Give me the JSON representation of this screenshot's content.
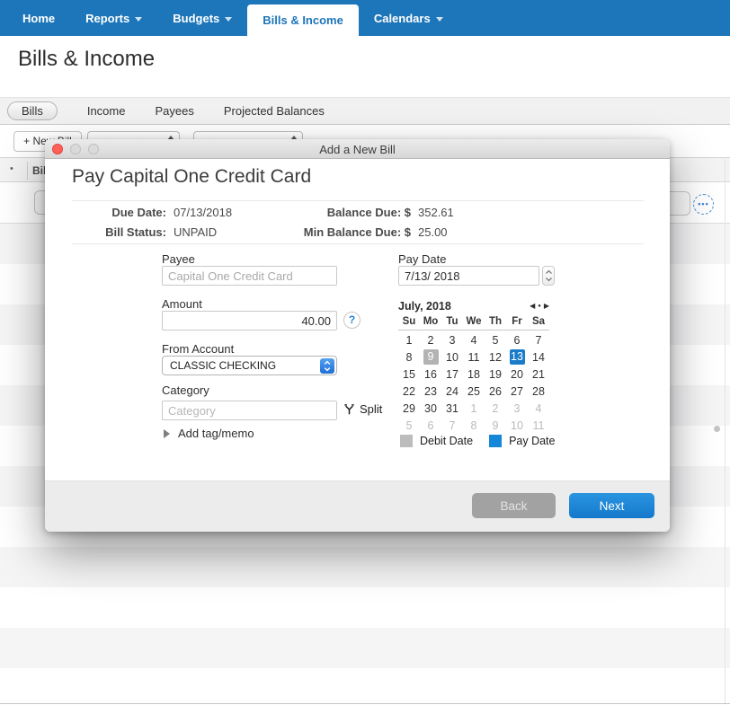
{
  "nav": {
    "items": [
      {
        "label": "Home",
        "dropdown": false,
        "active": false
      },
      {
        "label": "Reports",
        "dropdown": true,
        "active": false
      },
      {
        "label": "Budgets",
        "dropdown": true,
        "active": false
      },
      {
        "label": "Bills & Income",
        "dropdown": false,
        "active": true
      },
      {
        "label": "Calendars",
        "dropdown": true,
        "active": false
      }
    ]
  },
  "page": {
    "title": "Bills & Income"
  },
  "subtabs": {
    "items": [
      {
        "label": "Bills",
        "selected": true
      },
      {
        "label": "Income",
        "selected": false
      },
      {
        "label": "Payees",
        "selected": false
      },
      {
        "label": "Projected Balances",
        "selected": false
      }
    ]
  },
  "toolbar": {
    "new_bill_label": "+ New Bill"
  },
  "list": {
    "header_bullet": "•",
    "header_label": "Bil",
    "more_button_dots": "•••"
  },
  "dialog": {
    "window_title": "Add a New Bill",
    "title": "Pay Capital One Credit Card",
    "summary": {
      "due_date_label": "Due Date:",
      "due_date_value": "07/13/2018",
      "bill_status_label": "Bill Status:",
      "bill_status_value": "UNPAID",
      "balance_due_label": "Balance Due: $",
      "balance_due_value": "352.61",
      "min_balance_label": "Min Balance Due: $",
      "min_balance_value": "25.00"
    },
    "form": {
      "payee_label": "Payee",
      "payee_value": "Capital One Credit Card",
      "amount_label": "Amount",
      "amount_value": "40.00",
      "help_glyph": "?",
      "from_account_label": "From Account",
      "from_account_value": "CLASSIC CHECKING",
      "category_label": "Category",
      "category_placeholder": "Category",
      "split_label": "Split",
      "add_tag_memo_label": "Add tag/memo",
      "pay_date_label": "Pay Date",
      "pay_date_value": "7/13/ 2018"
    },
    "calendar": {
      "month_label": "July, 2018",
      "nav_glyphs": {
        "prev": "◀",
        "today": "●",
        "next": "▶"
      },
      "weekdays": [
        "Su",
        "Mo",
        "Tu",
        "We",
        "Th",
        "Fr",
        "Sa"
      ],
      "weeks": [
        [
          "1",
          "2",
          "3",
          "4",
          "5",
          "6",
          "7"
        ],
        [
          "8",
          "9",
          "10",
          "11",
          "12",
          "13",
          "14"
        ],
        [
          "15",
          "16",
          "17",
          "18",
          "19",
          "20",
          "21"
        ],
        [
          "22",
          "23",
          "24",
          "25",
          "26",
          "27",
          "28"
        ],
        [
          "29",
          "30",
          "31",
          "1",
          "2",
          "3",
          "4"
        ],
        [
          "5",
          "6",
          "7",
          "8",
          "9",
          "10",
          "11"
        ]
      ],
      "muted_from": [
        4,
        3
      ],
      "debit_cell": [
        1,
        1
      ],
      "pay_cell": [
        1,
        5
      ],
      "legend": [
        {
          "label": "Debit Date",
          "color": "#bcbcbc"
        },
        {
          "label": "Pay Date",
          "color": "#1587d8"
        }
      ]
    },
    "buttons": {
      "back": "Back",
      "next": "Next"
    }
  },
  "colors": {
    "nav_blue": "#1d76b9",
    "pay_date_blue": "#1a7cc9",
    "debit_gray": "#b3b3b3",
    "next_button_blue": "#1b87d3",
    "legend_pay_blue": "#1587d8",
    "back_button_gray": "#a2a2a2",
    "traffic_red": "#ff5f57"
  }
}
